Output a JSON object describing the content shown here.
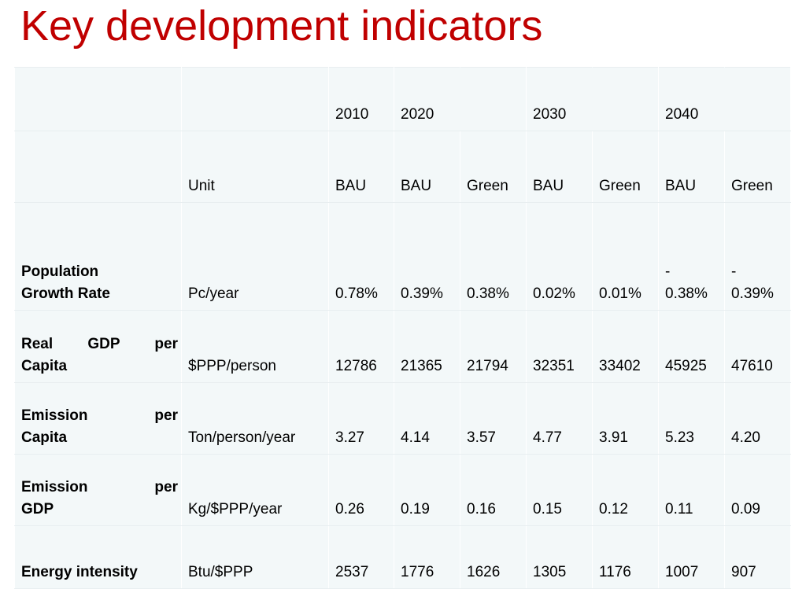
{
  "title": "Key development indicators",
  "years": [
    "2010",
    "2020",
    "",
    "2030",
    "",
    "2040",
    ""
  ],
  "header_unit": "Unit",
  "scenarios": [
    "BAU",
    "BAU",
    "Green",
    "BAU",
    "Green",
    "BAU",
    "Green"
  ],
  "rows": [
    {
      "line1": "Population",
      "line2": "Growth Rate",
      "unit": "Pc/year",
      "values": [
        {
          "top": "",
          "bottom": "0.78%"
        },
        {
          "top": "",
          "bottom": "0.39%"
        },
        {
          "top": "",
          "bottom": "0.38%"
        },
        {
          "top": "",
          "bottom": "0.02%"
        },
        {
          "top": "",
          "bottom": "0.01%"
        },
        {
          "top": "-",
          "bottom": "0.38%"
        },
        {
          "top": "-",
          "bottom": "0.39%"
        }
      ]
    },
    {
      "line1": "Real GDP per",
      "line2": "Capita",
      "unit": "$PPP/person",
      "values": [
        {
          "top": "",
          "bottom": "12786"
        },
        {
          "top": "",
          "bottom": "21365"
        },
        {
          "top": "",
          "bottom": "21794"
        },
        {
          "top": "",
          "bottom": "32351"
        },
        {
          "top": "",
          "bottom": "33402"
        },
        {
          "top": "",
          "bottom": "45925"
        },
        {
          "top": "",
          "bottom": "47610"
        }
      ]
    },
    {
      "line1": "Emission per",
      "line2": "Capita",
      "unit": "Ton/person/year",
      "values": [
        {
          "top": "",
          "bottom": "3.27"
        },
        {
          "top": "",
          "bottom": "4.14"
        },
        {
          "top": "",
          "bottom": "3.57"
        },
        {
          "top": "",
          "bottom": "4.77"
        },
        {
          "top": "",
          "bottom": "3.91"
        },
        {
          "top": "",
          "bottom": "5.23"
        },
        {
          "top": "",
          "bottom": "4.20"
        }
      ]
    },
    {
      "line1": "Emission per",
      "line2": "GDP",
      "unit": "Kg/$PPP/year",
      "values": [
        {
          "top": "",
          "bottom": "0.26"
        },
        {
          "top": "",
          "bottom": "0.19"
        },
        {
          "top": "",
          "bottom": "0.16"
        },
        {
          "top": "",
          "bottom": "0.15"
        },
        {
          "top": "",
          "bottom": "0.12"
        },
        {
          "top": "",
          "bottom": "0.11"
        },
        {
          "top": "",
          "bottom": "0.09"
        }
      ]
    },
    {
      "line1": "Energy intensity",
      "line2": "",
      "unit": "Btu/$PPP",
      "values": [
        {
          "top": "",
          "bottom": "2537"
        },
        {
          "top": "",
          "bottom": "1776"
        },
        {
          "top": "",
          "bottom": "1626"
        },
        {
          "top": "",
          "bottom": "1305"
        },
        {
          "top": "",
          "bottom": "1176"
        },
        {
          "top": "",
          "bottom": "1007"
        },
        {
          "top": "",
          "bottom": "907"
        }
      ]
    }
  ]
}
